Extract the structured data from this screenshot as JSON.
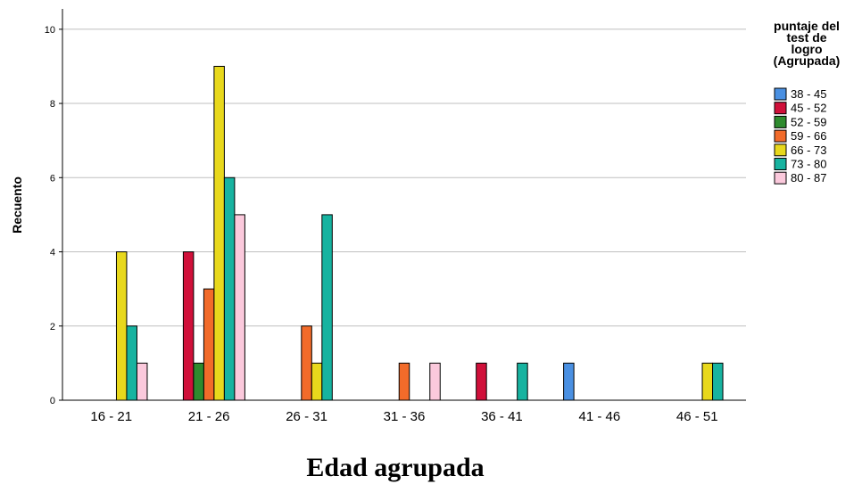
{
  "chart_data": {
    "type": "bar",
    "xlabel": "Edad agrupada",
    "ylabel": "Recuento",
    "ylim": [
      0,
      10.5
    ],
    "yticks": [
      0,
      2,
      4,
      6,
      8,
      10
    ],
    "grid": "horizontal",
    "legend_position": "top-right",
    "legend_title": [
      "puntaje del",
      "test de",
      "logro",
      "(Agrupada)"
    ],
    "categories": [
      "16 -  21",
      "21 - 26",
      "26 - 31",
      "31 - 36",
      "36 - 41",
      "41 - 46",
      "46 - 51"
    ],
    "series": [
      {
        "name": "38 - 45",
        "color": "#4a90e2",
        "values": [
          0,
          0,
          0,
          0,
          0,
          1,
          0
        ]
      },
      {
        "name": "45 - 52",
        "color": "#d0103a",
        "values": [
          0,
          4,
          0,
          0,
          1,
          0,
          0
        ]
      },
      {
        "name": "52 - 59",
        "color": "#2e8b2e",
        "values": [
          0,
          1,
          0,
          0,
          0,
          0,
          0
        ]
      },
      {
        "name": "59 - 66",
        "color": "#f26b2a",
        "values": [
          0,
          3,
          2,
          1,
          0,
          0,
          0
        ]
      },
      {
        "name": "66 - 73",
        "color": "#e8d81c",
        "values": [
          4,
          9,
          1,
          0,
          0,
          0,
          1
        ]
      },
      {
        "name": "73 - 80",
        "color": "#17b3a0",
        "values": [
          2,
          6,
          5,
          0,
          1,
          0,
          1
        ]
      },
      {
        "name": "80 - 87",
        "color": "#fbc9dc",
        "values": [
          1,
          5,
          0,
          1,
          0,
          0,
          0
        ]
      }
    ]
  }
}
